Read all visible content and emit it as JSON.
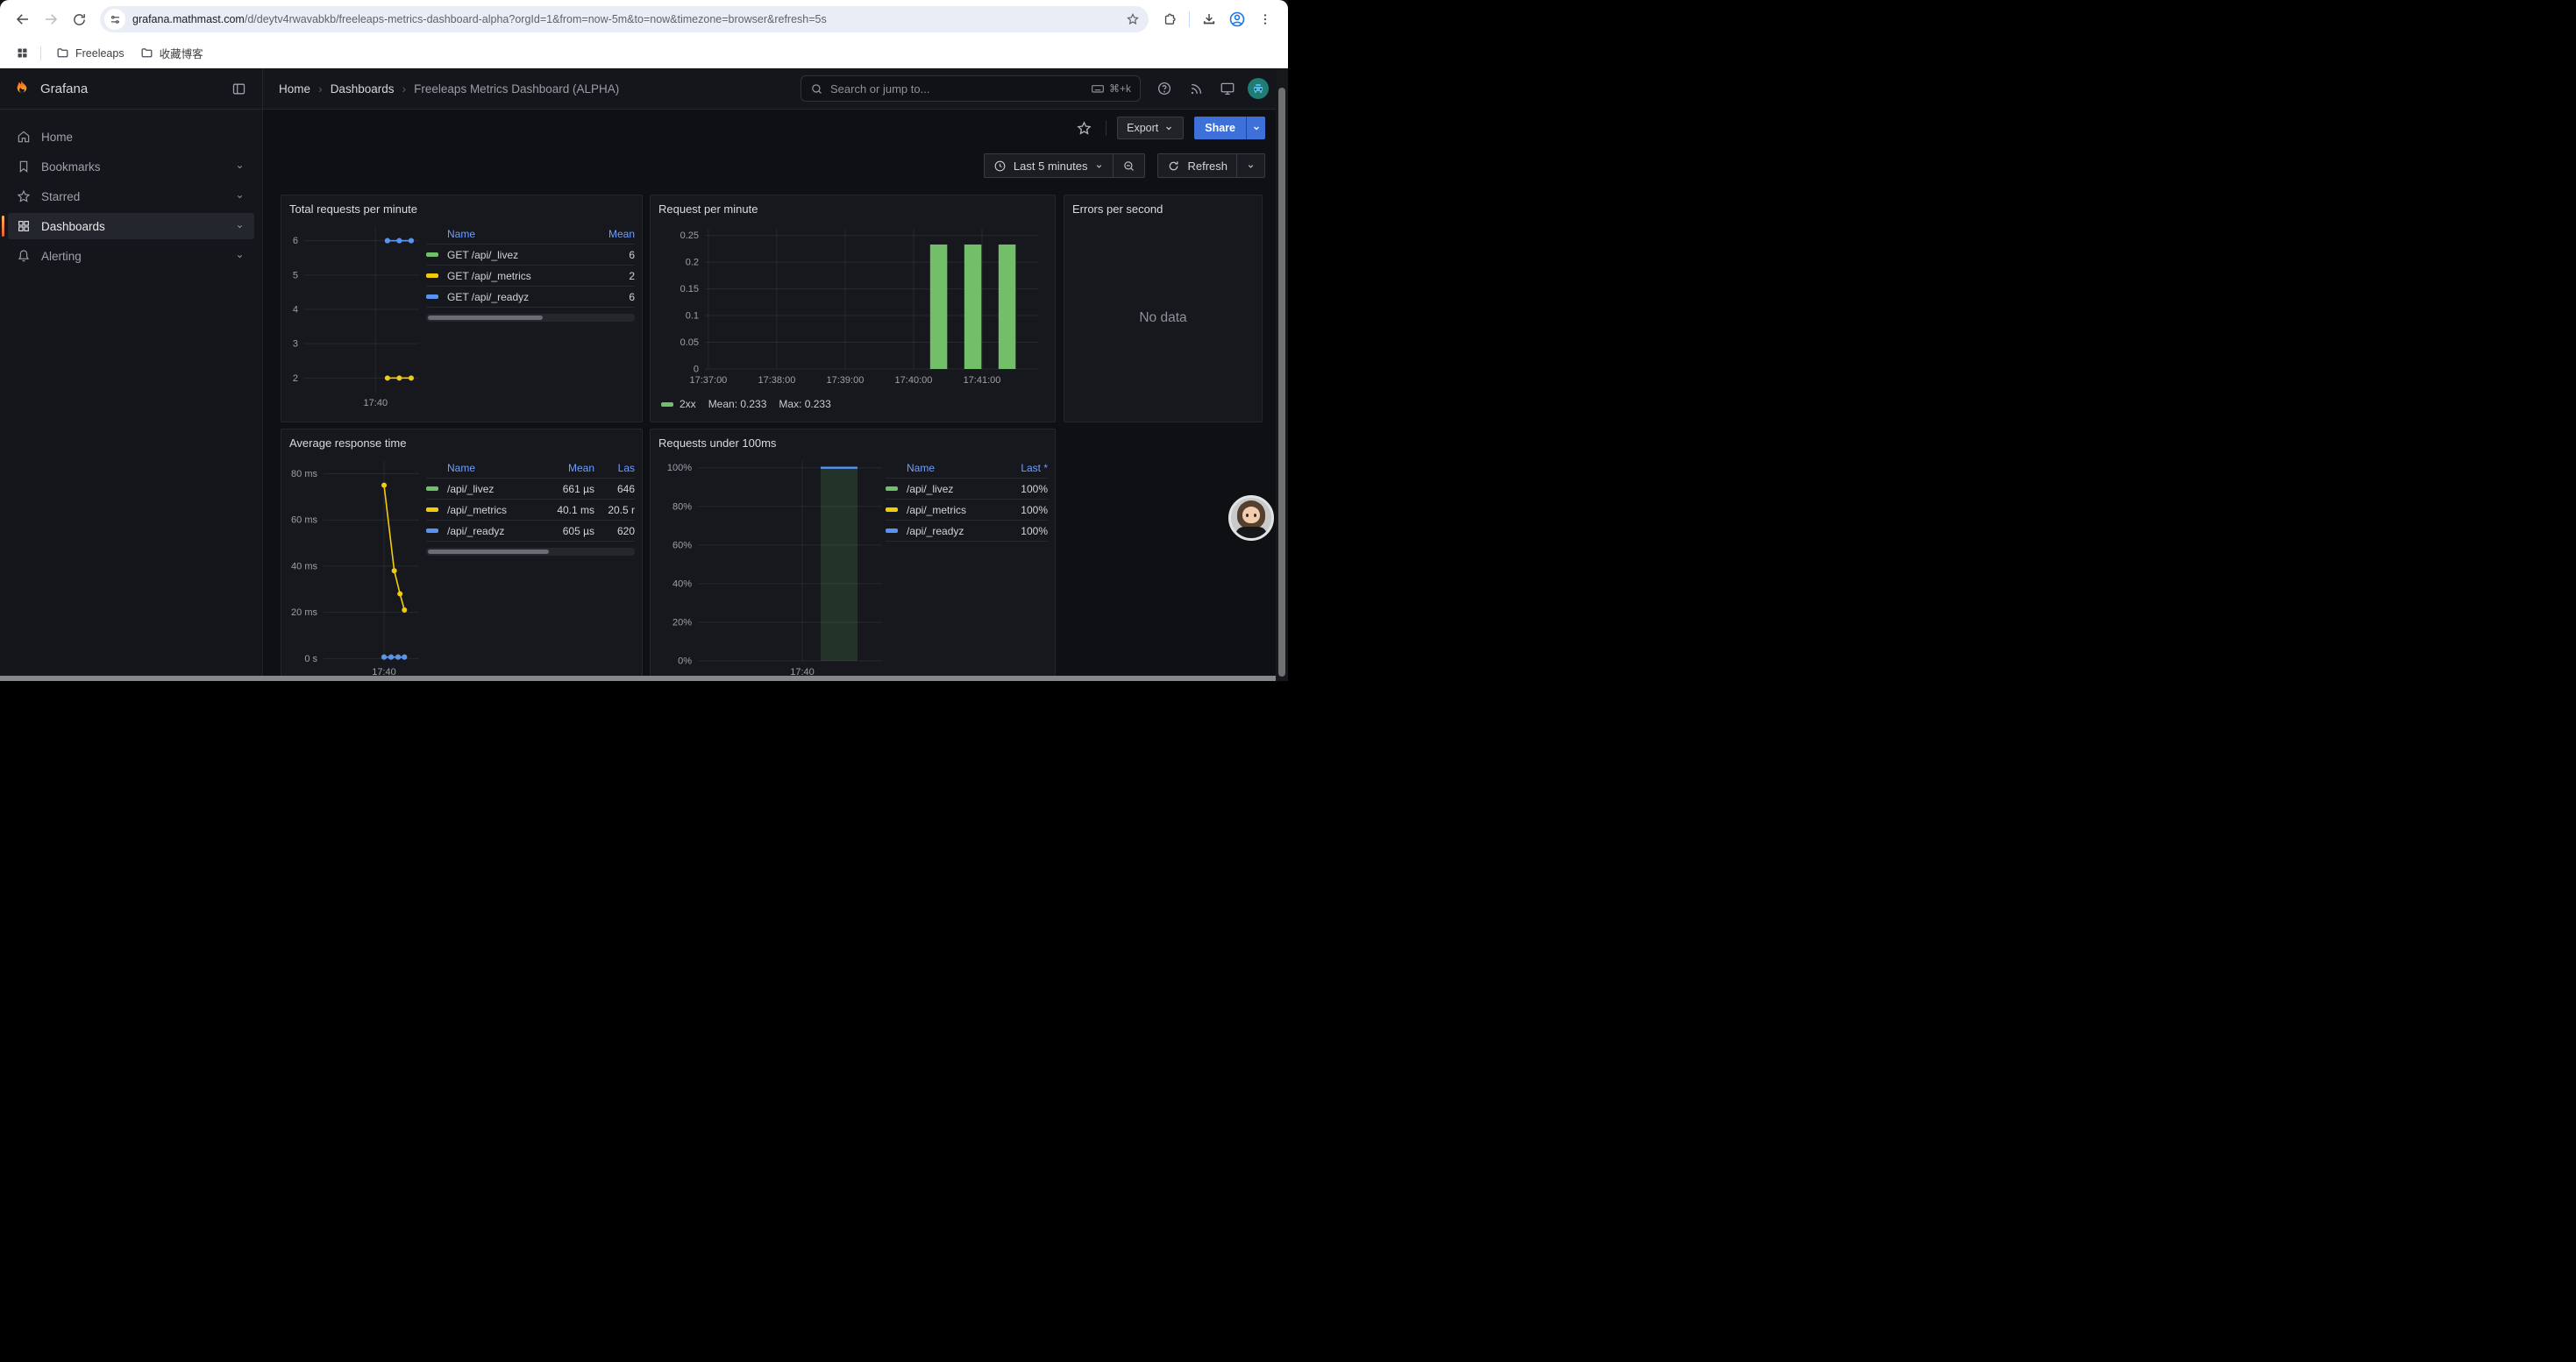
{
  "browser": {
    "url": {
      "host": "grafana.mathmast.com",
      "rest": "/d/deytv4rwavabkb/freeleaps-metrics-dashboard-alpha?orgId=1&from=now-5m&to=now&timezone=browser&refresh=5s"
    },
    "bookmarks_bar": {
      "folders": [
        "Freeleaps",
        "收藏博客"
      ]
    }
  },
  "gf": {
    "brand": "Grafana",
    "breadcrumb": {
      "home": "Home",
      "section": "Dashboards",
      "current": "Freeleaps Metrics Dashboard (ALPHA)"
    },
    "search": {
      "placeholder": "Search or jump to...",
      "shortcut": "⌘+k"
    },
    "sidebar": [
      {
        "label": "Home",
        "icon": "home",
        "chevron": false,
        "active": false
      },
      {
        "label": "Bookmarks",
        "icon": "bookmark",
        "chevron": true,
        "active": false
      },
      {
        "label": "Starred",
        "icon": "star",
        "chevron": true,
        "active": false
      },
      {
        "label": "Dashboards",
        "icon": "apps",
        "chevron": true,
        "active": true
      },
      {
        "label": "Alerting",
        "icon": "bell",
        "chevron": true,
        "active": false
      }
    ],
    "toolbar": {
      "export": "Export",
      "share": "Share"
    },
    "timebar": {
      "range": "Last 5 minutes",
      "refresh": "Refresh"
    }
  },
  "panels": {
    "p1": {
      "title": "Total requests per minute",
      "legend": {
        "headers": [
          "Name",
          "Mean"
        ],
        "rows": [
          {
            "name": "GET /api/_livez",
            "color": "#73bf69",
            "values": [
              "6"
            ]
          },
          {
            "name": "GET /api/_metrics",
            "color": "#f2cc0c",
            "values": [
              "2"
            ]
          },
          {
            "name": "GET /api/_readyz",
            "color": "#5794f2",
            "values": [
              "6"
            ]
          }
        ]
      }
    },
    "p2": {
      "title": "Request per minute",
      "footer": {
        "series": "2xx",
        "color": "#73bf69",
        "mean": "Mean: 0.233",
        "max": "Max: 0.233"
      }
    },
    "p3": {
      "title": "Errors per second",
      "message": "No data"
    },
    "p4": {
      "title": "Average response time",
      "legend": {
        "headers": [
          "Name",
          "Mean",
          "Las"
        ],
        "rows": [
          {
            "name": "/api/_livez",
            "color": "#73bf69",
            "values": [
              "661 µs",
              "646"
            ]
          },
          {
            "name": "/api/_metrics",
            "color": "#f2cc0c",
            "values": [
              "40.1 ms",
              "20.5 r"
            ]
          },
          {
            "name": "/api/_readyz",
            "color": "#5794f2",
            "values": [
              "605 µs",
              "620"
            ]
          }
        ]
      }
    },
    "p5": {
      "title": "Requests under 100ms",
      "legend": {
        "headers": [
          "Name",
          "Last *"
        ],
        "rows": [
          {
            "name": "/api/_livez",
            "color": "#73bf69",
            "values": [
              "100%"
            ]
          },
          {
            "name": "/api/_metrics",
            "color": "#f2cc0c",
            "values": [
              "100%"
            ]
          },
          {
            "name": "/api/_readyz",
            "color": "#5794f2",
            "values": [
              "100%"
            ]
          }
        ]
      }
    }
  },
  "chart_data": [
    {
      "id": "p1",
      "type": "line",
      "title": "Total requests per minute",
      "x_range": [
        "17:38:30",
        "17:40:55"
      ],
      "x_ticks": [
        {
          "t": "17:40:00",
          "label": "17:40"
        }
      ],
      "y_ticks": [
        {
          "v": 2,
          "label": "2"
        },
        {
          "v": 3,
          "label": "3"
        },
        {
          "v": 4,
          "label": "4"
        },
        {
          "v": 5,
          "label": "5"
        },
        {
          "v": 6,
          "label": "6"
        }
      ],
      "y_range": [
        1.6,
        6.4
      ],
      "legend_position": "right",
      "series": [
        {
          "name": "GET /api/_livez",
          "color": "#73bf69",
          "mean": 6,
          "points": [
            [
              "17:40:15",
              6
            ],
            [
              "17:40:30",
              6
            ],
            [
              "17:40:45",
              6
            ]
          ]
        },
        {
          "name": "GET /api/_metrics",
          "color": "#f2cc0c",
          "mean": 2,
          "points": [
            [
              "17:40:15",
              2
            ],
            [
              "17:40:30",
              2
            ],
            [
              "17:40:45",
              2
            ]
          ]
        },
        {
          "name": "GET /api/_readyz",
          "color": "#5794f2",
          "mean": 6,
          "points": [
            [
              "17:40:15",
              6
            ],
            [
              "17:40:30",
              6
            ],
            [
              "17:40:45",
              6
            ]
          ]
        }
      ]
    },
    {
      "id": "p2",
      "type": "bar",
      "title": "Request per minute",
      "x_range": [
        "17:36:57",
        "17:41:50"
      ],
      "x_ticks": [
        {
          "t": "17:37:00",
          "label": "17:37:00"
        },
        {
          "t": "17:38:00",
          "label": "17:38:00"
        },
        {
          "t": "17:39:00",
          "label": "17:39:00"
        },
        {
          "t": "17:40:00",
          "label": "17:40:00"
        },
        {
          "t": "17:41:00",
          "label": "17:41:00"
        }
      ],
      "y_ticks": [
        {
          "v": 0,
          "label": "0"
        },
        {
          "v": 0.05,
          "label": "0.05"
        },
        {
          "v": 0.1,
          "label": "0.1"
        },
        {
          "v": 0.15,
          "label": "0.15"
        },
        {
          "v": 0.2,
          "label": "0.2"
        },
        {
          "v": 0.25,
          "label": "0.25"
        }
      ],
      "y_range": [
        0,
        0.2625
      ],
      "color": "#73bf69",
      "bar_width_s": 15,
      "bars": [
        [
          "17:40:22",
          0.233
        ],
        [
          "17:40:52",
          0.233
        ],
        [
          "17:41:22",
          0.233
        ]
      ],
      "legend": {
        "name": "2xx",
        "mean": 0.233,
        "max": 0.233
      }
    },
    {
      "id": "p3",
      "type": "none",
      "title": "Errors per second",
      "message": "No data"
    },
    {
      "id": "p4",
      "type": "line",
      "title": "Average response time",
      "x_range": [
        "17:38:25",
        "17:40:55"
      ],
      "x_ticks": [
        {
          "t": "17:40:00",
          "label": "17:40"
        }
      ],
      "y_ticks": [
        {
          "v": 0,
          "label": "0 s"
        },
        {
          "v": 20,
          "label": "20 ms"
        },
        {
          "v": 40,
          "label": "40 ms"
        },
        {
          "v": 60,
          "label": "60 ms"
        },
        {
          "v": 80,
          "label": "80 ms"
        }
      ],
      "y_range": [
        -1,
        85.5
      ],
      "y_unit": "ms",
      "legend_position": "right",
      "series": [
        {
          "name": "/api/_livez",
          "color": "#73bf69",
          "mean_label": "661 µs",
          "points": [
            [
              "17:40:00",
              0.66
            ],
            [
              "17:40:11",
              0.66
            ],
            [
              "17:40:22",
              0.66
            ],
            [
              "17:40:32",
              0.66
            ]
          ]
        },
        {
          "name": "/api/_metrics",
          "color": "#f2cc0c",
          "mean_label": "40.1 ms",
          "points": [
            [
              "17:40:00",
              75
            ],
            [
              "17:40:16",
              38
            ],
            [
              "17:40:25",
              28
            ],
            [
              "17:40:32",
              21
            ]
          ]
        },
        {
          "name": "/api/_readyz",
          "color": "#5794f2",
          "mean_label": "605 µs",
          "points": [
            [
              "17:40:00",
              0.6
            ],
            [
              "17:40:11",
              0.6
            ],
            [
              "17:40:22",
              0.6
            ],
            [
              "17:40:32",
              0.6
            ]
          ]
        }
      ]
    },
    {
      "id": "p5",
      "type": "area-bar",
      "title": "Requests under 100ms",
      "x_range": [
        "17:38:35",
        "17:41:05"
      ],
      "x_ticks": [
        {
          "t": "17:40:00",
          "label": "17:40"
        }
      ],
      "y_ticks": [
        {
          "v": 0,
          "label": "0%"
        },
        {
          "v": 20,
          "label": "20%"
        },
        {
          "v": 40,
          "label": "40%"
        },
        {
          "v": 60,
          "label": "60%"
        },
        {
          "v": 80,
          "label": "80%"
        },
        {
          "v": 100,
          "label": "100%"
        }
      ],
      "y_range": [
        0,
        103.5
      ],
      "span": {
        "t1": "17:40:15",
        "t2": "17:40:45",
        "v": 100
      },
      "fill": "#73bf69",
      "fill_opacity": 0.16,
      "stroke": "#5794f2"
    }
  ]
}
